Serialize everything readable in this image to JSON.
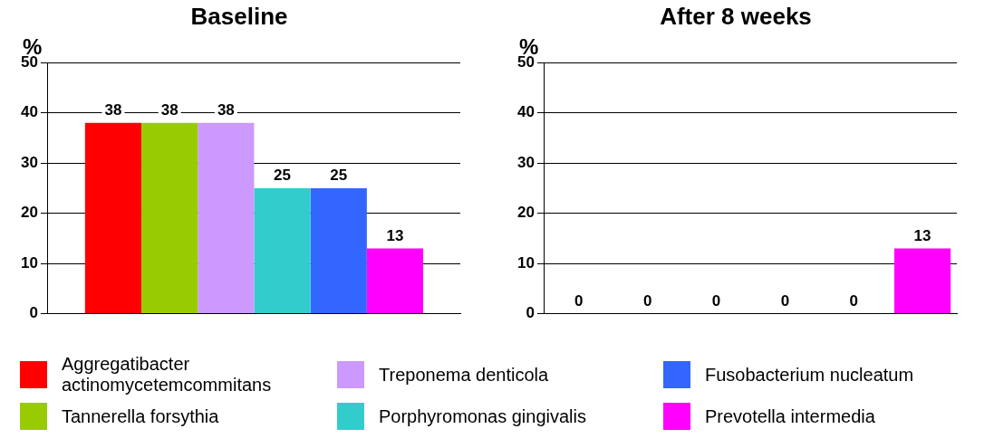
{
  "chart_data": [
    {
      "type": "bar",
      "title": "Baseline",
      "ylabel": "%",
      "categories": [
        null
      ],
      "ylim": [
        0,
        50
      ],
      "yticks": [
        0,
        10,
        20,
        30,
        40,
        50
      ],
      "grid": "y",
      "data_labels": true,
      "legend": "bottom",
      "series": [
        {
          "name": "Aggregatibacter actinomycetemcommitans",
          "color": "#ff0000",
          "values": [
            38
          ]
        },
        {
          "name": "Tannerella forsythia",
          "color": "#99cc00",
          "values": [
            38
          ]
        },
        {
          "name": "Treponema denticola",
          "color": "#cc99ff",
          "values": [
            38
          ]
        },
        {
          "name": "Porphyromonas gingivalis",
          "color": "#33cccc",
          "values": [
            25
          ]
        },
        {
          "name": "Fusobacterium nucleatum",
          "color": "#3366ff",
          "values": [
            25
          ]
        },
        {
          "name": "Prevotella intermedia",
          "color": "#ff00ff",
          "values": [
            13
          ]
        }
      ]
    },
    {
      "type": "bar",
      "title": "After 8 weeks",
      "ylabel": "%",
      "categories": [
        null,
        null,
        null,
        null,
        null,
        null
      ],
      "ylim": [
        0,
        50
      ],
      "yticks": [
        0,
        10,
        20,
        30,
        40,
        50
      ],
      "grid": "y",
      "data_labels": true,
      "series": [
        {
          "colors": [
            "#ff0000",
            "#99cc00",
            "#cc99ff",
            "#33cccc",
            "#3366ff",
            "#ff00ff"
          ],
          "values": [
            0,
            0,
            0,
            0,
            0,
            13
          ]
        }
      ]
    }
  ]
}
